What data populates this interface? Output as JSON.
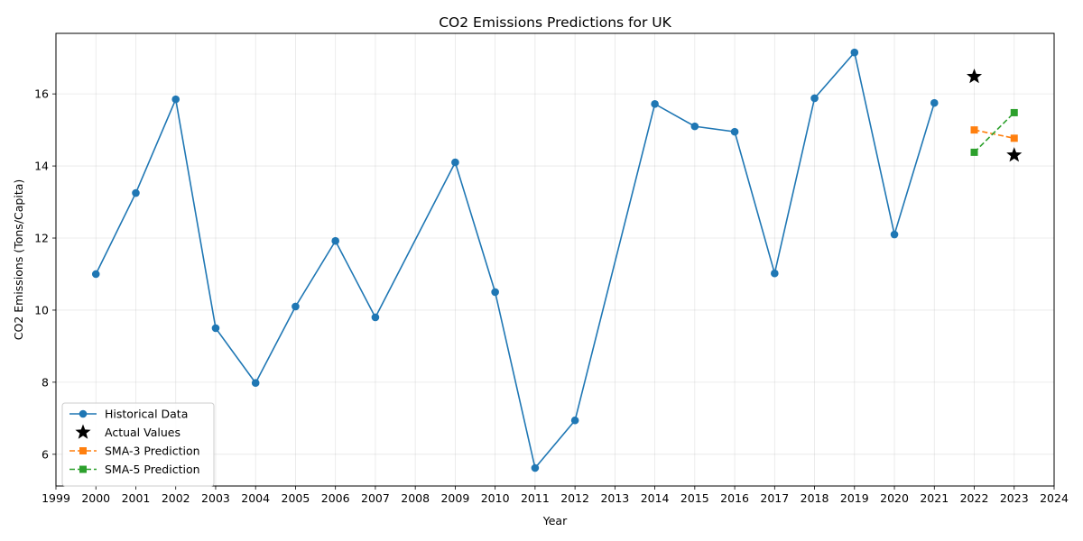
{
  "chart_data": {
    "type": "line",
    "title": "CO2 Emissions Predictions for UK",
    "xlabel": "Year",
    "ylabel": "CO2 Emissions (Tons/Capita)",
    "xlim": [
      1999,
      2024
    ],
    "ylim": [
      5.12,
      17.68
    ],
    "x_ticks": [
      "1999",
      "2000",
      "2001",
      "2002",
      "2003",
      "2004",
      "2005",
      "2006",
      "2007",
      "2008",
      "2009",
      "2010",
      "2011",
      "2012",
      "2013",
      "2014",
      "2015",
      "2016",
      "2017",
      "2018",
      "2019",
      "2020",
      "2021",
      "2022",
      "2023",
      "2024"
    ],
    "y_ticks": [
      "6",
      "8",
      "10",
      "12",
      "14",
      "16"
    ],
    "grid": true,
    "legend_position": "lower-left",
    "series": [
      {
        "name": "Historical Data",
        "color": "#1f77b4",
        "style": "solid",
        "marker": "circle",
        "x": [
          2000,
          2001,
          2002,
          2003,
          2004,
          2005,
          2006,
          2007,
          2009,
          2010,
          2011,
          2012,
          2014,
          2015,
          2016,
          2017,
          2018,
          2019,
          2020,
          2021
        ],
        "y": [
          11.0,
          13.25,
          15.85,
          9.5,
          7.98,
          10.1,
          11.92,
          9.8,
          14.1,
          10.5,
          5.62,
          6.94,
          15.72,
          15.1,
          14.95,
          11.02,
          15.88,
          17.15,
          12.1,
          15.75
        ]
      },
      {
        "name": "Actual Values",
        "color": "#000000",
        "style": "none",
        "marker": "star",
        "x": [
          2022,
          2023
        ],
        "y": [
          16.48,
          14.3
        ]
      },
      {
        "name": "SMA-3 Prediction",
        "color": "#ff7f0e",
        "style": "dashed",
        "marker": "square",
        "x": [
          2022,
          2023
        ],
        "y": [
          15.0,
          14.77
        ]
      },
      {
        "name": "SMA-5 Prediction",
        "color": "#2ca02c",
        "style": "dashed",
        "marker": "square",
        "x": [
          2022,
          2023
        ],
        "y": [
          14.38,
          15.48
        ]
      }
    ]
  }
}
